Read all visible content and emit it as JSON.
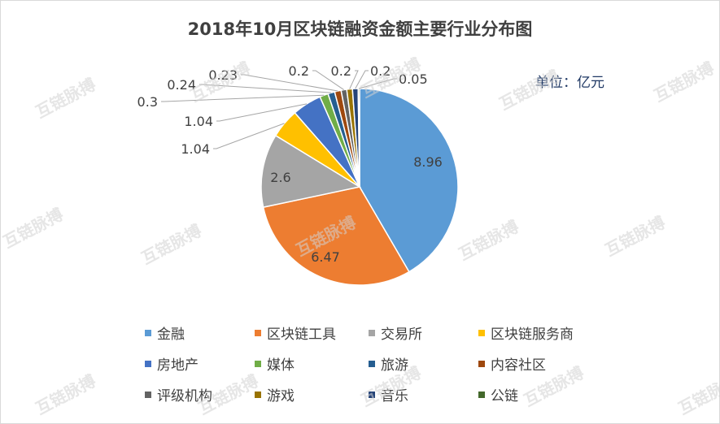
{
  "title": "2018年10月区块链融资金额主要行业分布图",
  "unit_label": "单位：亿元",
  "watermark": "互链脉搏",
  "chart_data": {
    "type": "pie",
    "title": "2018年10月区块链融资金额主要行业分布图",
    "unit": "亿元",
    "legend_position": "bottom",
    "slices": [
      {
        "name": "金融",
        "value": 8.96,
        "label": "8.96",
        "color": "#5b9bd5"
      },
      {
        "name": "区块链工具",
        "value": 6.47,
        "label": "6.47",
        "color": "#ed7d31"
      },
      {
        "name": "交易所",
        "value": 2.6,
        "label": "2.6",
        "color": "#a5a5a5"
      },
      {
        "name": "区块链服务商",
        "value": 1.04,
        "label": "1.04",
        "color": "#ffc000"
      },
      {
        "name": "房地产",
        "value": 1.04,
        "label": "1.04",
        "color": "#4472c4"
      },
      {
        "name": "媒体",
        "value": 0.3,
        "label": "0.3",
        "color": "#70ad47"
      },
      {
        "name": "旅游",
        "value": 0.24,
        "label": "0.24",
        "color": "#255e91"
      },
      {
        "name": "内容社区",
        "value": 0.23,
        "label": "0.23",
        "color": "#9e480e"
      },
      {
        "name": "评级机构",
        "value": 0.2,
        "label": "0.2",
        "color": "#636363"
      },
      {
        "name": "游戏",
        "value": 0.2,
        "label": "0.2",
        "color": "#997300"
      },
      {
        "name": "音乐",
        "value": 0.2,
        "label": "0.2",
        "color": "#264478"
      },
      {
        "name": "公链",
        "value": 0.05,
        "label": "0.05",
        "color": "#43682b"
      }
    ]
  }
}
